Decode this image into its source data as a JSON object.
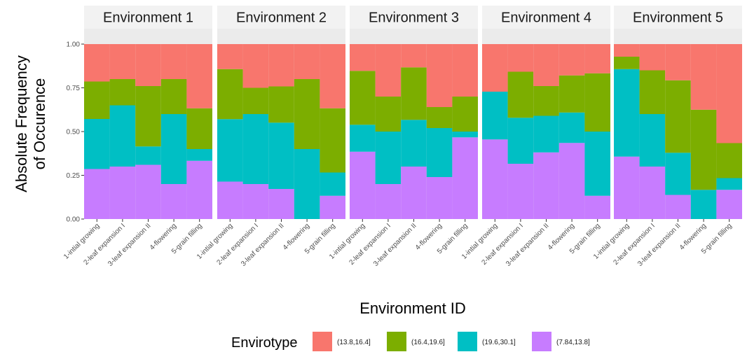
{
  "chart_data": {
    "type": "bar",
    "stacked": true,
    "xlabel": "Environment ID",
    "ylabel": [
      "Absolute Frequency",
      "of Occurence"
    ],
    "ylim": [
      0,
      1
    ],
    "yticks": [
      "0.00",
      "0.25",
      "0.50",
      "0.75",
      "1.00"
    ],
    "categories": [
      "1-intial growing",
      "2-leaf expansion I",
      "3-leaf expansion II",
      "4-flowering",
      "5-grain filling"
    ],
    "legend": {
      "title": "Envirotype",
      "position": "bottom",
      "entries": [
        {
          "label": "(13.8,16.4]",
          "color": "#F8766D"
        },
        {
          "label": "(16.4,19.6]",
          "color": "#7CAE00"
        },
        {
          "label": "(19.6,30.1]",
          "color": "#00BFC4"
        },
        {
          "label": "(7.84,13.8]",
          "color": "#C77CFF"
        }
      ]
    },
    "stack_order_bottom_to_top": [
      "(7.84,13.8]",
      "(19.6,30.1]",
      "(16.4,19.6]",
      "(13.8,16.4]"
    ],
    "panels": [
      {
        "title": "Environment 1",
        "series": [
          {
            "name": "(7.84,13.8]",
            "values": [
              0.286,
              0.3,
              0.31,
              0.2,
              0.333
            ]
          },
          {
            "name": "(19.6,30.1]",
            "values": [
              0.286,
              0.35,
              0.105,
              0.4,
              0.067
            ]
          },
          {
            "name": "(16.4,19.6]",
            "values": [
              0.214,
              0.15,
              0.345,
              0.2,
              0.233
            ]
          },
          {
            "name": "(13.8,16.4]",
            "values": [
              0.214,
              0.2,
              0.24,
              0.2,
              0.367
            ]
          }
        ]
      },
      {
        "title": "Environment 2",
        "series": [
          {
            "name": "(7.84,13.8]",
            "values": [
              0.214,
              0.2,
              0.172,
              0.0,
              0.133
            ]
          },
          {
            "name": "(19.6,30.1]",
            "values": [
              0.357,
              0.4,
              0.379,
              0.4,
              0.133
            ]
          },
          {
            "name": "(16.4,19.6]",
            "values": [
              0.286,
              0.15,
              0.207,
              0.4,
              0.367
            ]
          },
          {
            "name": "(13.8,16.4]",
            "values": [
              0.143,
              0.25,
              0.242,
              0.2,
              0.367
            ]
          }
        ]
      },
      {
        "title": "Environment 3",
        "series": [
          {
            "name": "(7.84,13.8]",
            "values": [
              0.385,
              0.2,
              0.3,
              0.24,
              0.467
            ]
          },
          {
            "name": "(19.6,30.1]",
            "values": [
              0.154,
              0.3,
              0.267,
              0.28,
              0.033
            ]
          },
          {
            "name": "(16.4,19.6]",
            "values": [
              0.308,
              0.2,
              0.3,
              0.12,
              0.2
            ]
          },
          {
            "name": "(13.8,16.4]",
            "values": [
              0.153,
              0.3,
              0.133,
              0.36,
              0.3
            ]
          }
        ]
      },
      {
        "title": "Environment 4",
        "series": [
          {
            "name": "(7.84,13.8]",
            "values": [
              0.455,
              0.316,
              0.381,
              0.435,
              0.133
            ]
          },
          {
            "name": "(19.6,30.1]",
            "values": [
              0.273,
              0.263,
              0.209,
              0.174,
              0.367
            ]
          },
          {
            "name": "(16.4,19.6]",
            "values": [
              0.0,
              0.263,
              0.17,
              0.212,
              0.333
            ]
          },
          {
            "name": "(13.8,16.4]",
            "values": [
              0.272,
              0.158,
              0.24,
              0.179,
              0.167
            ]
          }
        ]
      },
      {
        "title": "Environment 5",
        "series": [
          {
            "name": "(7.84,13.8]",
            "values": [
              0.357,
              0.3,
              0.138,
              0.0,
              0.167
            ]
          },
          {
            "name": "(19.6,30.1]",
            "values": [
              0.5,
              0.3,
              0.241,
              0.167,
              0.067
            ]
          },
          {
            "name": "(16.4,19.6]",
            "values": [
              0.071,
              0.25,
              0.414,
              0.458,
              0.2
            ]
          },
          {
            "name": "(13.8,16.4]",
            "values": [
              0.072,
              0.15,
              0.207,
              0.375,
              0.566
            ]
          }
        ]
      }
    ]
  }
}
